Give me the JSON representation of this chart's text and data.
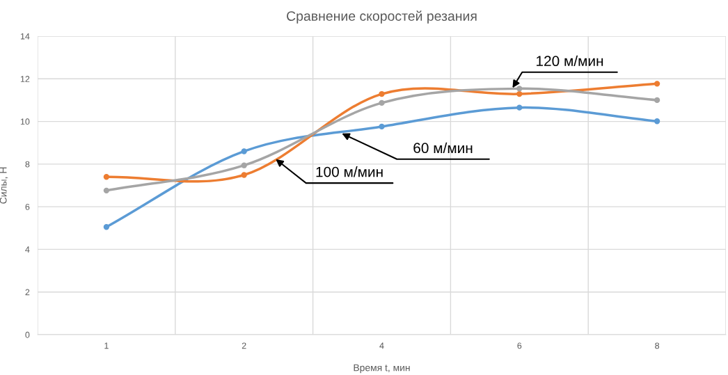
{
  "chart_data": {
    "type": "line",
    "title": "Сравнение скоростей резания",
    "xlabel": "Время t, мин",
    "ylabel": "Силы, Н",
    "categories": [
      "1",
      "2",
      "4",
      "6",
      "8"
    ],
    "series": [
      {
        "name": "60 м/мин",
        "color": "#5b9bd5",
        "values": [
          5.05,
          8.6,
          9.76,
          10.65,
          10.01
        ]
      },
      {
        "name": "100 м/мин",
        "color": "#ed7d31",
        "values": [
          7.4,
          7.49,
          11.29,
          11.29,
          11.77
        ]
      },
      {
        "name": "120 м/мин",
        "color": "#a5a5a5",
        "values": [
          6.76,
          7.94,
          10.87,
          11.54,
          11.0
        ]
      }
    ],
    "ylim": [
      0,
      14
    ],
    "yticks": [
      0,
      2,
      4,
      6,
      8,
      10,
      12,
      14
    ],
    "grid": true,
    "legend": false,
    "marker": "circle",
    "line_style": "solid"
  }
}
